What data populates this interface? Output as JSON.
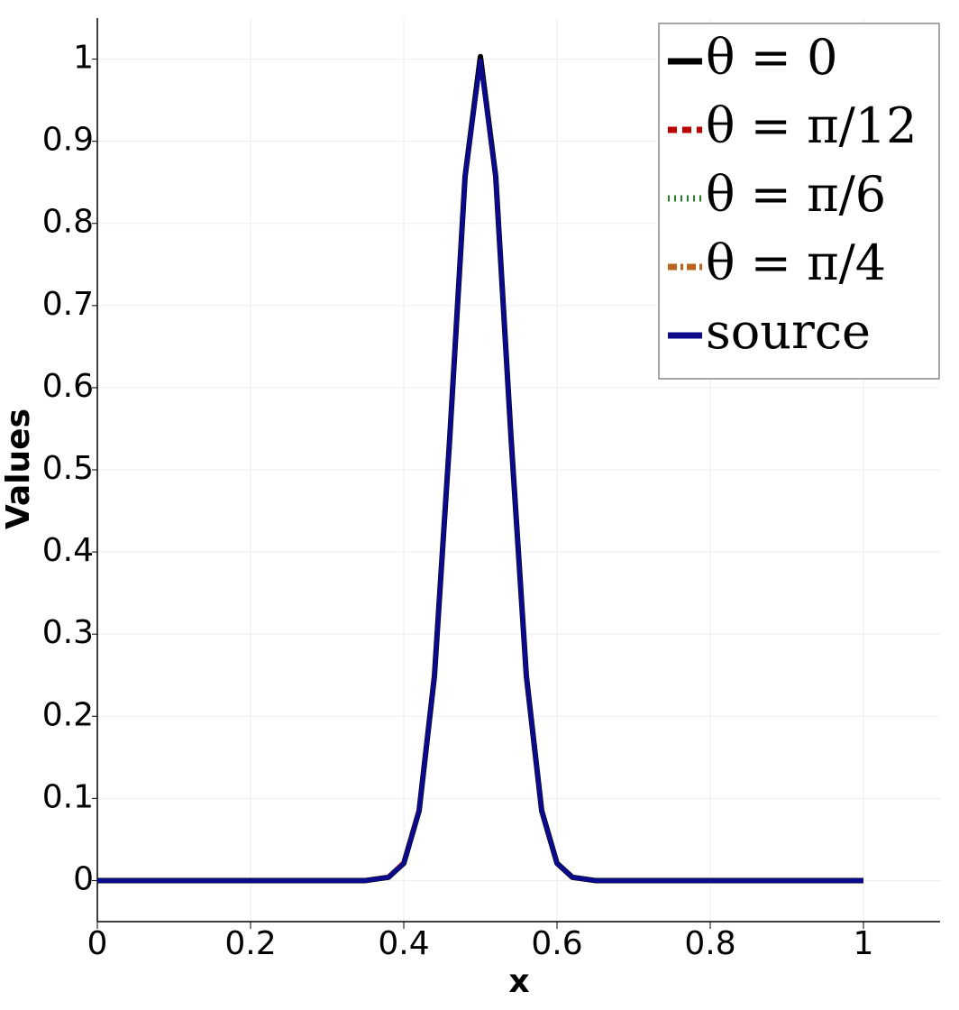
{
  "chart_data": {
    "type": "line",
    "x_label": "x",
    "y_label": "Values",
    "x": [
      0,
      0.1,
      0.2,
      0.3,
      0.35,
      0.38,
      0.4,
      0.42,
      0.44,
      0.46,
      0.48,
      0.5,
      0.52,
      0.54,
      0.56,
      0.58,
      0.6,
      0.62,
      0.65,
      0.7,
      0.8,
      0.9,
      1
    ],
    "series": [
      {
        "name": "θ = 0",
        "color": "#000000",
        "dash": "solid",
        "values": [
          0,
          0,
          0,
          0,
          0,
          0.004,
          0.021,
          0.085,
          0.249,
          0.539,
          0.857,
          1.003,
          0.857,
          0.539,
          0.249,
          0.085,
          0.021,
          0.004,
          0,
          0,
          0,
          0,
          0
        ]
      },
      {
        "name": "θ = π/12",
        "color": "#c00000",
        "dash": "dashed",
        "values": [
          0,
          0,
          0,
          0,
          0,
          0.005,
          0.023,
          0.088,
          0.254,
          0.543,
          0.856,
          0.995,
          0.852,
          0.534,
          0.245,
          0.083,
          0.021,
          0.004,
          0,
          0,
          0,
          0,
          0
        ]
      },
      {
        "name": "θ = π/6",
        "color": "#2a7a2a",
        "dash": "dotted",
        "values": [
          0,
          0,
          0,
          0,
          0,
          0.004,
          0.022,
          0.087,
          0.252,
          0.541,
          0.856,
          0.996,
          0.854,
          0.536,
          0.247,
          0.084,
          0.021,
          0.004,
          0,
          0,
          0,
          0,
          0
        ]
      },
      {
        "name": "θ = π/4",
        "color": "#b8641e",
        "dash": "dashdot",
        "values": [
          0,
          0,
          0,
          0,
          0,
          0.004,
          0.022,
          0.086,
          0.251,
          0.54,
          0.855,
          0.997,
          0.855,
          0.538,
          0.248,
          0.085,
          0.021,
          0.004,
          0,
          0,
          0,
          0,
          0
        ]
      },
      {
        "name": "source",
        "color": "#0a0a8a",
        "dash": "solid",
        "values": [
          0,
          0,
          0,
          0,
          0,
          0.004,
          0.021,
          0.085,
          0.249,
          0.539,
          0.857,
          0.998,
          0.857,
          0.539,
          0.249,
          0.085,
          0.021,
          0.004,
          0,
          0,
          0,
          0,
          0
        ]
      }
    ],
    "xlim": [
      0,
      1.1
    ],
    "ylim": [
      -0.05,
      1.05
    ],
    "xticks": [
      0,
      0.2,
      0.4,
      0.6,
      0.8,
      1
    ],
    "yticks": [
      0,
      0.1,
      0.2,
      0.3,
      0.4,
      0.5,
      0.6,
      0.7,
      0.8,
      0.9,
      1
    ],
    "grid": true,
    "legend": "upper right"
  }
}
